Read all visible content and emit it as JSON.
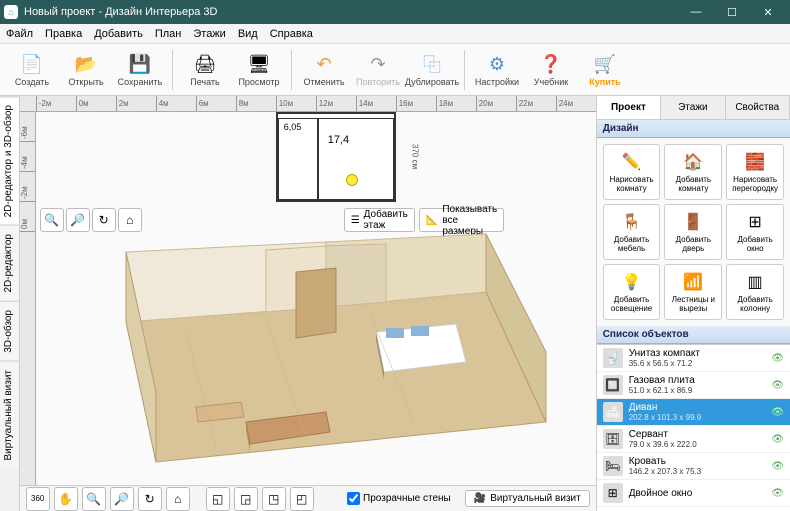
{
  "window": {
    "title": "Новый проект - Дизайн Интерьера 3D"
  },
  "menu": {
    "file": "Файл",
    "edit": "Правка",
    "add": "Добавить",
    "plan": "План",
    "floors": "Этажи",
    "view": "Вид",
    "help": "Справка"
  },
  "toolbar": {
    "create": "Создать",
    "open": "Открыть",
    "save": "Сохранить",
    "print": "Печать",
    "preview": "Просмотр",
    "undo": "Отменить",
    "redo": "Повторить",
    "duplicate": "Дублировать",
    "settings": "Настройки",
    "tutorial": "Учебник",
    "buy": "Купить"
  },
  "ruler_x": [
    "-2м",
    "0м",
    "2м",
    "4м",
    "6м",
    "8м",
    "10м",
    "12м",
    "14м",
    "16м",
    "18м",
    "20м",
    "22м",
    "24м"
  ],
  "ruler_y": [
    "-6м",
    "-4м",
    "-2м",
    "0м"
  ],
  "floorplan": {
    "area_a": "6,05",
    "area_b": "17,4",
    "dim_h": "370 см"
  },
  "tools2d": {
    "add_floor": "Добавить этаж",
    "show_dims": "Показывать все размеры"
  },
  "sidetabs": {
    "combined": "2D-редактор и 3D-обзор",
    "edit2d": "2D-редактор",
    "view3d": "3D-обзор",
    "virtual": "Виртуальный визит"
  },
  "bottom": {
    "transparent": "Прозрачные стены",
    "virtual_visit": "Виртуальный визит"
  },
  "rtab": {
    "project": "Проект",
    "floors": "Этажи",
    "properties": "Свойства"
  },
  "sections": {
    "design": "Дизайн",
    "objects": "Список объектов"
  },
  "design": {
    "draw_room": "Нарисовать комнату",
    "add_room": "Добавить комнату",
    "draw_wall": "Нарисовать перегородку",
    "add_furniture": "Добавить мебель",
    "add_door": "Добавить дверь",
    "add_window": "Добавить окно",
    "add_lighting": "Добавить освещение",
    "stairs": "Лестницы и вырезы",
    "add_column": "Добавить колонну"
  },
  "objects": [
    {
      "name": "Унитаз компакт",
      "dims": "35.6 x 56.5 x 71.2",
      "icon": "🚽"
    },
    {
      "name": "Газовая плита",
      "dims": "51.0 x 62.1 x 86.9",
      "icon": "🔲"
    },
    {
      "name": "Диван",
      "dims": "202.8 x 101.3 x 99.9",
      "icon": "🛋",
      "selected": true
    },
    {
      "name": "Сервант",
      "dims": "79.0 x 39.6 x 222.0",
      "icon": "🗄"
    },
    {
      "name": "Кровать",
      "dims": "146.2 x 207.3 x 75.3",
      "icon": "🛏"
    },
    {
      "name": "Двойное окно",
      "dims": "",
      "icon": "⊞"
    }
  ],
  "colors": {
    "titlebar": "#2b5a5a",
    "accent_buy": "#ff9800",
    "selected_row": "#3399dd",
    "section_hdr_top": "#e0ecf8",
    "section_hdr_bot": "#c8dcf0"
  }
}
